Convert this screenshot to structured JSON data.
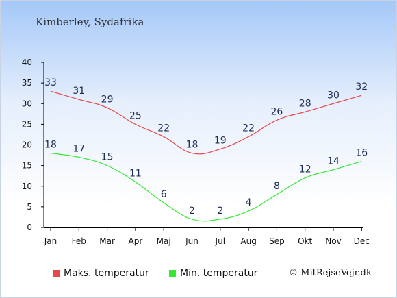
{
  "page_title": "Kimberley, Sydafrika",
  "credit": "© MitRejseVejr.dk",
  "colors": {
    "max": "#e8474c",
    "min": "#34e834",
    "axis": "#000000",
    "label": "#1c2c54"
  },
  "chart_data": {
    "type": "line",
    "title": "Kimberley, Sydafrika",
    "categories": [
      "Jan",
      "Feb",
      "Mar",
      "Apr",
      "Maj",
      "Jun",
      "Jul",
      "Aug",
      "Sep",
      "Okt",
      "Nov",
      "Dec"
    ],
    "series": [
      {
        "name": "Maks. temperatur",
        "values": [
          33,
          31,
          29,
          25,
          22,
          18,
          19,
          22,
          26,
          28,
          30,
          32
        ]
      },
      {
        "name": "Min. temperatur",
        "values": [
          18,
          17,
          15,
          11,
          6,
          2,
          2,
          4,
          8,
          12,
          14,
          16
        ]
      }
    ],
    "ylim": [
      0,
      40
    ],
    "yticks": [
      0,
      5,
      10,
      15,
      20,
      25,
      30,
      35,
      40
    ],
    "grid": false,
    "legend_position": "bottom"
  }
}
